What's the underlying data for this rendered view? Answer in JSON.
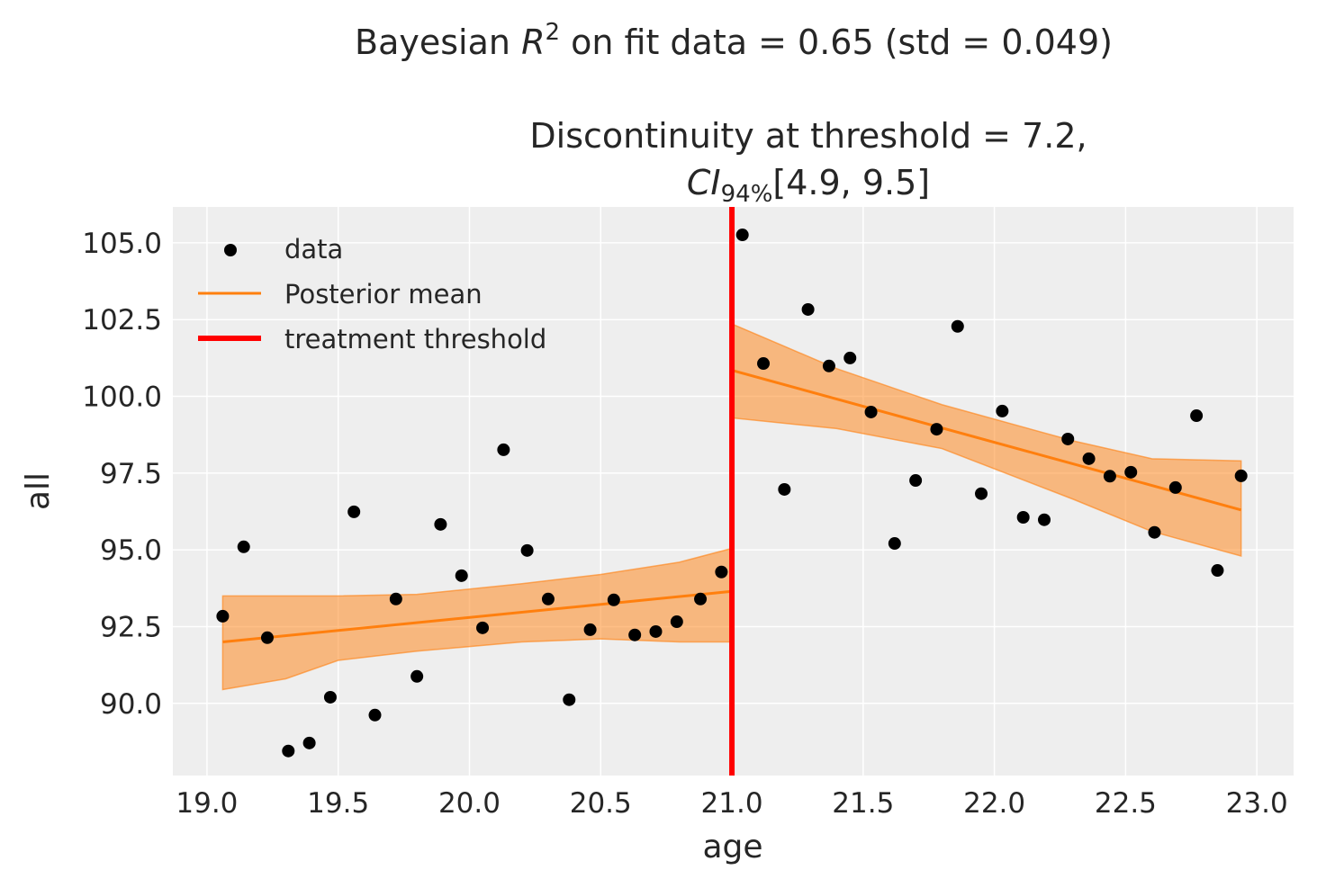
{
  "chart_data": {
    "type": "scatter",
    "suptitle": {
      "prefix": "Bayesian ",
      "r": "R",
      "sup": "2",
      "suffix": " on fit data = 0.65 (std = 0.049)"
    },
    "title": {
      "line1": "Discontinuity at threshold = 7.2,",
      "ci": "CI",
      "ci_sub": "94%",
      "ci_rest": "[4.9, 9.5]"
    },
    "xlabel": "age",
    "ylabel": "all",
    "xlim": [
      18.87,
      23.14
    ],
    "ylim": [
      87.65,
      106.17
    ],
    "xticks": [
      19.0,
      19.5,
      20.0,
      20.5,
      21.0,
      21.5,
      22.0,
      22.5,
      23.0
    ],
    "xtick_labels": [
      "19.0",
      "19.5",
      "20.0",
      "20.5",
      "21.0",
      "21.5",
      "22.0",
      "22.5",
      "23.0"
    ],
    "yticks": [
      90.0,
      92.5,
      95.0,
      97.5,
      100.0,
      102.5,
      105.0
    ],
    "ytick_labels": [
      "90.0",
      "92.5",
      "95.0",
      "97.5",
      "100.0",
      "102.5",
      "105.0"
    ],
    "grid": true,
    "legend_placement": "top-left",
    "legend": [
      "data",
      "Posterior mean",
      "treatment threshold"
    ],
    "colors": {
      "background": "#eeeeee",
      "grid": "#ffffff",
      "data": "#000000",
      "mean": "#ff7f0e",
      "band": "#ff7f0e",
      "threshold": "#ff0000"
    },
    "threshold": 21.0,
    "data": {
      "x": [
        19.06,
        19.14,
        19.23,
        19.31,
        19.39,
        19.47,
        19.56,
        19.64,
        19.72,
        19.8,
        19.89,
        19.97,
        20.05,
        20.13,
        20.22,
        20.3,
        20.38,
        20.46,
        20.55,
        20.63,
        20.71,
        20.79,
        20.88,
        20.96,
        21.04,
        21.12,
        21.2,
        21.29,
        21.37,
        21.45,
        21.53,
        21.62,
        21.7,
        21.78,
        21.86,
        21.95,
        22.03,
        22.11,
        22.19,
        22.28,
        22.36,
        22.44,
        22.52,
        22.61,
        22.69,
        22.77,
        22.85,
        22.94
      ],
      "y": [
        92.84,
        95.1,
        92.14,
        88.45,
        88.71,
        90.2,
        96.24,
        89.62,
        93.4,
        90.88,
        95.83,
        94.16,
        92.46,
        98.26,
        94.98,
        93.4,
        90.12,
        92.4,
        93.37,
        92.23,
        92.34,
        92.66,
        93.4,
        94.28,
        105.26,
        101.07,
        96.97,
        102.83,
        100.99,
        101.25,
        99.49,
        95.21,
        97.26,
        98.93,
        102.28,
        96.83,
        99.52,
        96.06,
        95.98,
        98.61,
        97.97,
        97.4,
        97.53,
        95.57,
        97.03,
        99.37,
        94.33,
        97.41
      ]
    },
    "posterior_mean": [
      {
        "x": [
          19.06,
          21.0
        ],
        "y": [
          92.0,
          93.65
        ]
      },
      {
        "x": [
          21.0,
          22.94
        ],
        "y": [
          100.85,
          96.3
        ]
      }
    ],
    "credible_band": [
      {
        "x": [
          19.06,
          19.3,
          19.5,
          19.8,
          20.2,
          20.5,
          20.8,
          21.0
        ],
        "lower": [
          90.45,
          90.8,
          91.4,
          91.7,
          92.0,
          92.1,
          92.0,
          92.0
        ],
        "upper": [
          93.5,
          93.5,
          93.5,
          93.55,
          93.9,
          94.2,
          94.6,
          95.05
        ]
      },
      {
        "x": [
          21.0,
          21.4,
          21.8,
          22.3,
          22.6,
          22.94
        ],
        "lower": [
          99.3,
          98.95,
          98.3,
          96.65,
          95.6,
          94.8
        ],
        "upper": [
          102.36,
          100.9,
          99.73,
          98.55,
          97.97,
          97.9
        ]
      }
    ]
  }
}
